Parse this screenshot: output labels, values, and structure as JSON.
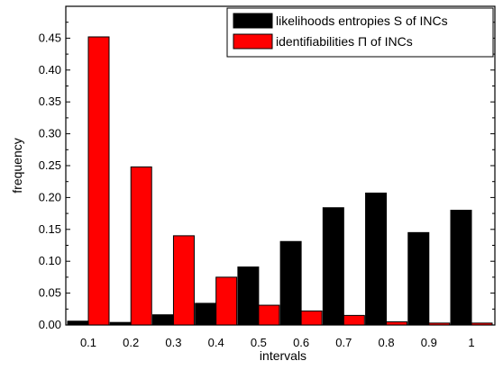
{
  "chart_data": {
    "type": "bar",
    "categories": [
      "0.1",
      "0.2",
      "0.3",
      "0.4",
      "0.5",
      "0.6",
      "0.7",
      "0.8",
      "0.9",
      "1"
    ],
    "series": [
      {
        "name": "likelihoods entropies S of INCs",
        "color": "#000000",
        "values": [
          0.006,
          0.004,
          0.016,
          0.034,
          0.091,
          0.131,
          0.184,
          0.207,
          0.145,
          0.18
        ]
      },
      {
        "name": "identifiabilities Π of INCs",
        "color": "#ff0000",
        "values": [
          0.452,
          0.248,
          0.14,
          0.075,
          0.031,
          0.022,
          0.015,
          0.005,
          0.003,
          0.003
        ]
      }
    ],
    "xlabel": "intervals",
    "ylabel": "frequency",
    "ylim": [
      0,
      0.5
    ],
    "yticks": [
      "0.00",
      "0.05",
      "0.10",
      "0.15",
      "0.20",
      "0.25",
      "0.30",
      "0.35",
      "0.40",
      "0.45"
    ],
    "grid": false,
    "legend_position": "top-right"
  }
}
